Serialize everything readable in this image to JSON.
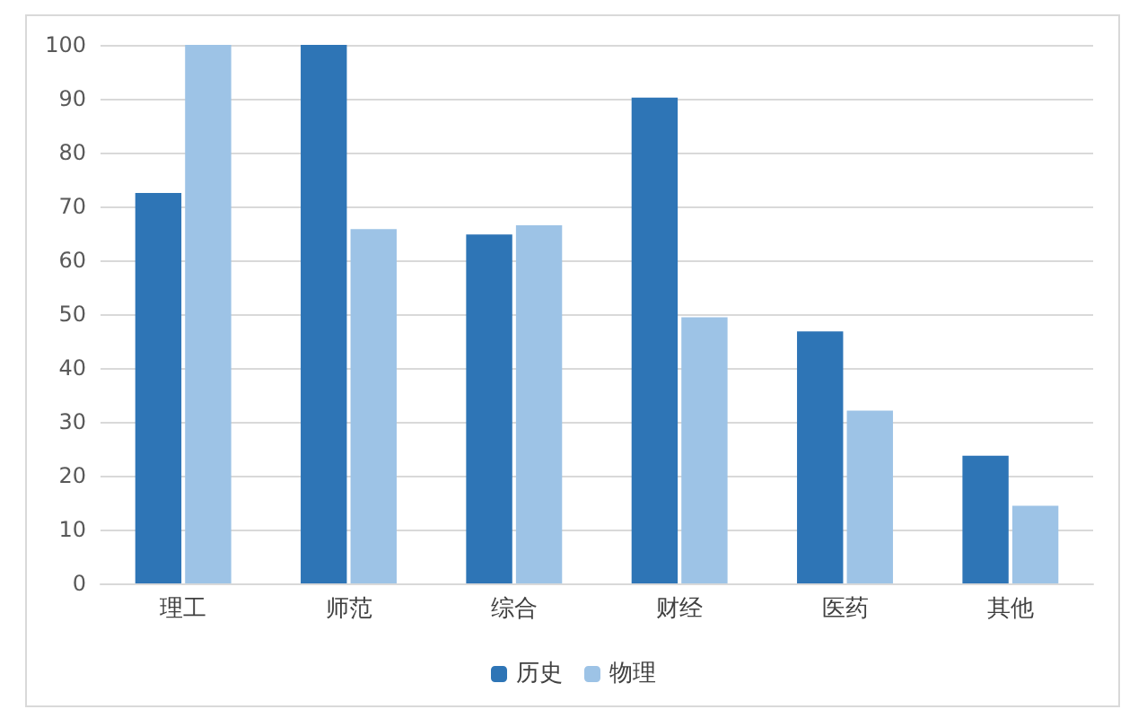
{
  "chart_data": {
    "type": "bar",
    "categories": [
      "理工",
      "师范",
      "综合",
      "财经",
      "医药",
      "其他"
    ],
    "series": [
      {
        "name": "历史",
        "color": "#2e75b6",
        "values": [
          72.5,
          100,
          64.8,
          90.2,
          46.8,
          23.7
        ]
      },
      {
        "name": "物理",
        "color": "#9dc3e6",
        "values": [
          100,
          65.8,
          66.5,
          49.4,
          32.1,
          14.4
        ]
      }
    ],
    "ylim": [
      0,
      100
    ],
    "yticks": [
      0,
      10,
      20,
      30,
      40,
      50,
      60,
      70,
      80,
      90,
      100
    ],
    "grid": "y",
    "legend": "bottom"
  }
}
